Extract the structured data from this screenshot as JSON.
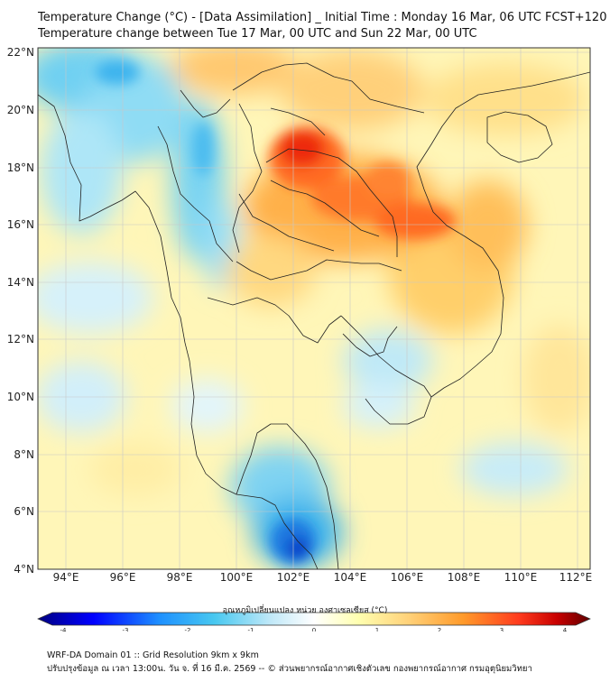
{
  "header": {
    "title": "Temperature Change (°C) - [Data Assimilation] _ Initial Time : Monday 16 Mar, 06 UTC FCST+120",
    "subtitle": "Temperature change between Tue 17 Mar, 00 UTC and Sun 22 Mar, 00 UTC"
  },
  "map": {
    "lat_ticks": [
      "22°N",
      "20°N",
      "18°N",
      "16°N",
      "14°N",
      "12°N",
      "10°N",
      "8°N",
      "6°N",
      "4°N"
    ],
    "lon_ticks": [
      "94°E",
      "96°E",
      "98°E",
      "100°E",
      "102°E",
      "104°E",
      "106°E",
      "108°E",
      "110°E",
      "112°E"
    ],
    "lat_range": [
      4,
      22.2
    ],
    "lon_range": [
      93,
      112.5
    ],
    "field": "temperature change",
    "unit": "°C"
  },
  "colorbar": {
    "title": "อุณหภูมิเปลี่ยนแปลง หน่วย องศาเซลเซียส (°C)",
    "ticks": [
      "-4",
      "-3",
      "-2",
      "-1",
      "0",
      "1",
      "2",
      "3",
      "4"
    ],
    "range": [
      -4,
      4
    ],
    "colors": [
      "#000080",
      "#0000ff",
      "#1e90ff",
      "#48c8f0",
      "#bfe8f8",
      "#ffffff",
      "#ffffb0",
      "#ffd27a",
      "#ff9a2a",
      "#ff3c1e",
      "#c80000",
      "#600000"
    ]
  },
  "footer": {
    "line1": "WRF-DA Domain 01 :: Grid Resolution 9km x 9km",
    "line2": "ปรับปรุงข้อมูล ณ เวลา 13:00น. วัน จ. ที่ 16 มี.ค. 2569 -- © ส่วนพยากรณ์อากาศเชิงตัวเลข กองพยากรณ์อากาศ กรมอุตุนิยมวิทยา"
  }
}
